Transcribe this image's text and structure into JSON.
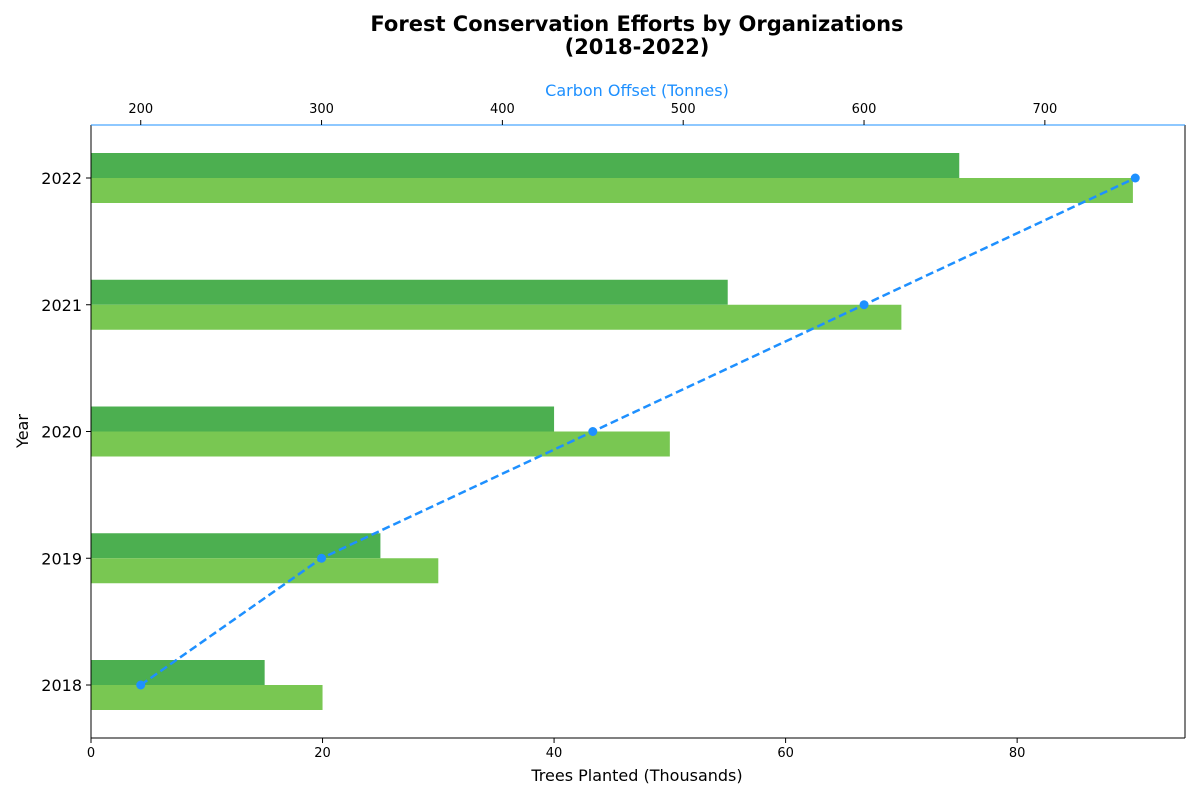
{
  "colors": {
    "series_a": "#4caf50",
    "series_b": "#79c752",
    "carbon": "#1e90ff",
    "axis": "#000000"
  },
  "chart_data": {
    "type": "bar",
    "orientation": "horizontal",
    "title_line1": "Forest Conservation Efforts by Organizations",
    "title_line2": "(2018-2022)",
    "xlabel": "Trees Planted (Thousands)",
    "ylabel": "Year",
    "x2label": "Carbon Offset (Tonnes)",
    "categories": [
      "2018",
      "2019",
      "2020",
      "2021",
      "2022"
    ],
    "xlim": [
      0,
      94.5
    ],
    "xticks": [
      0,
      20,
      40,
      60,
      80
    ],
    "x2lim": [
      172.5,
      777.5
    ],
    "x2ticks": [
      200,
      300,
      400,
      500,
      600,
      700
    ],
    "series": [
      {
        "values": [
          15,
          25,
          40,
          55,
          75
        ],
        "color": "#4caf50"
      },
      {
        "values": [
          20,
          30,
          50,
          70,
          90
        ],
        "color": "#79c752"
      }
    ],
    "line_series": {
      "axis": "top",
      "values": [
        200,
        300,
        450,
        600,
        750
      ],
      "color": "#1e90ff",
      "style": "dashed",
      "marker": "circle"
    },
    "grid": false,
    "legend": "none"
  }
}
